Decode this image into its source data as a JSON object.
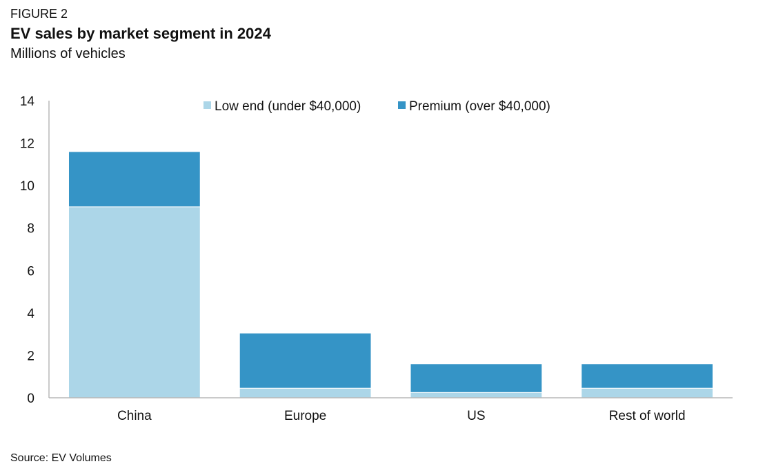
{
  "figure_label": "FIGURE 2",
  "title": "EV sales by market segment in 2024",
  "subtitle": "Millions of vehicles",
  "source": "Source: EV Volumes",
  "colors": {
    "low_end": "#acd6e8",
    "premium": "#3594c6",
    "axis": "#b8b8b8"
  },
  "chart_data": {
    "type": "bar",
    "stacked": true,
    "categories": [
      "China",
      "Europe",
      "US",
      "Rest of world"
    ],
    "series": [
      {
        "name": "Low end (under $40,000)",
        "values": [
          9.0,
          0.45,
          0.25,
          0.45
        ]
      },
      {
        "name": "Premium (over $40,000)",
        "values": [
          2.6,
          2.6,
          1.35,
          1.15
        ]
      }
    ],
    "ylim": [
      0,
      14
    ],
    "yticks": [
      0,
      2,
      4,
      6,
      8,
      10,
      12,
      14
    ],
    "legend_position": "top-center",
    "grid": false
  }
}
